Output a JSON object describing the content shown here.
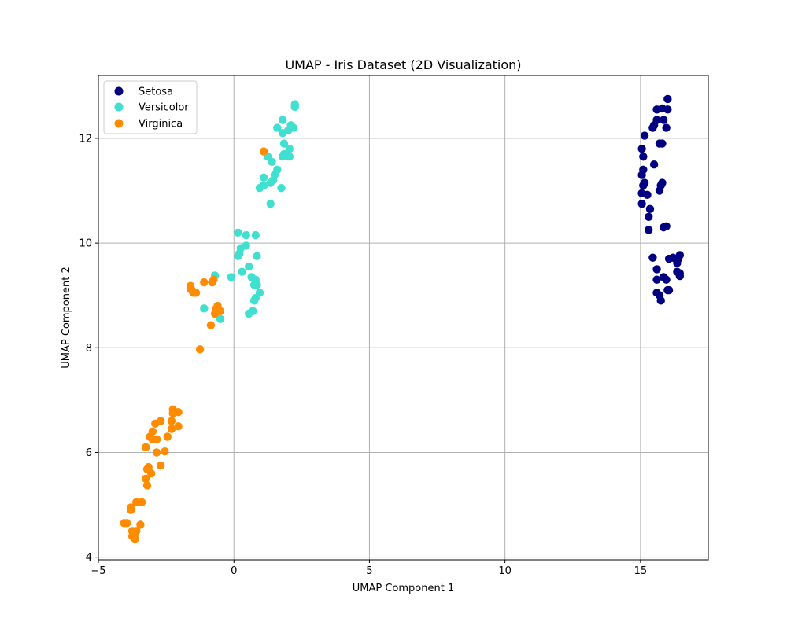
{
  "chart_data": {
    "type": "scatter",
    "title": "UMAP - Iris Dataset (2D Visualization)",
    "xlabel": "UMAP Component 1",
    "ylabel": "UMAP Component 2",
    "xlim": [
      -5,
      17.5
    ],
    "ylim": [
      3.95,
      13.2
    ],
    "xticks": [
      -5,
      0,
      5,
      10,
      15
    ],
    "yticks": [
      4,
      6,
      8,
      10,
      12
    ],
    "grid": true,
    "legend_position": "top-left",
    "series": [
      {
        "name": "Setosa",
        "color": "#000080",
        "points": [
          [
            16.0,
            12.75
          ],
          [
            15.6,
            12.55
          ],
          [
            15.8,
            12.57
          ],
          [
            16.0,
            12.55
          ],
          [
            15.6,
            12.35
          ],
          [
            15.85,
            12.35
          ],
          [
            15.5,
            12.25
          ],
          [
            15.45,
            12.2
          ],
          [
            15.95,
            12.2
          ],
          [
            15.15,
            12.05
          ],
          [
            15.7,
            11.9
          ],
          [
            15.8,
            11.9
          ],
          [
            15.05,
            11.8
          ],
          [
            15.1,
            11.65
          ],
          [
            15.5,
            11.5
          ],
          [
            15.1,
            11.4
          ],
          [
            15.05,
            11.3
          ],
          [
            15.15,
            11.15
          ],
          [
            15.1,
            11.1
          ],
          [
            15.8,
            11.15
          ],
          [
            15.75,
            11.1
          ],
          [
            15.7,
            11.0
          ],
          [
            15.05,
            10.95
          ],
          [
            15.25,
            10.92
          ],
          [
            15.05,
            10.75
          ],
          [
            15.35,
            10.65
          ],
          [
            15.3,
            10.5
          ],
          [
            15.85,
            10.3
          ],
          [
            15.95,
            10.32
          ],
          [
            15.3,
            10.25
          ],
          [
            16.45,
            9.77
          ],
          [
            16.2,
            9.72
          ],
          [
            16.05,
            9.7
          ],
          [
            16.4,
            9.7
          ],
          [
            15.45,
            9.72
          ],
          [
            16.35,
            9.62
          ],
          [
            15.6,
            9.5
          ],
          [
            16.35,
            9.45
          ],
          [
            16.45,
            9.42
          ],
          [
            16.45,
            9.37
          ],
          [
            15.85,
            9.35
          ],
          [
            15.95,
            9.3
          ],
          [
            15.6,
            9.3
          ],
          [
            16.0,
            9.1
          ],
          [
            16.05,
            9.1
          ],
          [
            15.6,
            9.05
          ],
          [
            15.7,
            9.0
          ],
          [
            15.75,
            8.9
          ]
        ]
      },
      {
        "name": "Versicolor",
        "color": "#40E0D0",
        "points": [
          [
            2.25,
            12.65
          ],
          [
            2.25,
            12.6
          ],
          [
            1.8,
            12.35
          ],
          [
            2.1,
            12.25
          ],
          [
            1.6,
            12.2
          ],
          [
            2.2,
            12.2
          ],
          [
            2.0,
            12.15
          ],
          [
            1.8,
            12.1
          ],
          [
            1.85,
            11.9
          ],
          [
            2.05,
            11.8
          ],
          [
            1.95,
            11.7
          ],
          [
            1.85,
            11.7
          ],
          [
            1.25,
            11.65
          ],
          [
            1.8,
            11.65
          ],
          [
            2.05,
            11.65
          ],
          [
            1.4,
            11.55
          ],
          [
            1.6,
            11.4
          ],
          [
            1.5,
            11.3
          ],
          [
            1.1,
            11.25
          ],
          [
            1.45,
            11.2
          ],
          [
            1.35,
            11.15
          ],
          [
            1.1,
            11.1
          ],
          [
            0.95,
            11.05
          ],
          [
            1.75,
            11.05
          ],
          [
            1.35,
            10.75
          ],
          [
            0.15,
            10.2
          ],
          [
            0.45,
            10.15
          ],
          [
            0.8,
            10.15
          ],
          [
            0.45,
            9.95
          ],
          [
            0.25,
            9.9
          ],
          [
            0.2,
            9.8
          ],
          [
            0.15,
            9.75
          ],
          [
            0.85,
            9.75
          ],
          [
            0.55,
            9.55
          ],
          [
            0.3,
            9.45
          ],
          [
            -0.1,
            9.35
          ],
          [
            -0.7,
            9.38
          ],
          [
            0.65,
            9.35
          ],
          [
            0.8,
            9.3
          ],
          [
            0.75,
            9.2
          ],
          [
            0.85,
            9.2
          ],
          [
            0.95,
            9.05
          ],
          [
            0.8,
            8.95
          ],
          [
            0.75,
            8.9
          ],
          [
            -1.1,
            8.75
          ],
          [
            0.7,
            8.7
          ],
          [
            0.55,
            8.65
          ],
          [
            -0.5,
            8.55
          ]
        ]
      },
      {
        "name": "Virginica",
        "color": "#FF8C00",
        "points": [
          [
            1.1,
            11.75
          ],
          [
            -1.6,
            9.18
          ],
          [
            -1.1,
            9.25
          ],
          [
            -0.75,
            9.3
          ],
          [
            -0.8,
            9.25
          ],
          [
            -1.6,
            9.12
          ],
          [
            -1.55,
            9.1
          ],
          [
            -1.5,
            9.05
          ],
          [
            -1.4,
            9.05
          ],
          [
            -0.6,
            8.8
          ],
          [
            -0.65,
            8.75
          ],
          [
            -0.5,
            8.7
          ],
          [
            -0.7,
            8.65
          ],
          [
            -0.85,
            8.43
          ],
          [
            -1.25,
            7.97
          ],
          [
            -2.25,
            6.82
          ],
          [
            -2.05,
            6.77
          ],
          [
            -2.25,
            6.75
          ],
          [
            -2.7,
            6.6
          ],
          [
            -2.3,
            6.6
          ],
          [
            -2.9,
            6.55
          ],
          [
            -2.05,
            6.5
          ],
          [
            -2.3,
            6.45
          ],
          [
            -3.0,
            6.4
          ],
          [
            -2.45,
            6.3
          ],
          [
            -3.1,
            6.3
          ],
          [
            -2.85,
            6.25
          ],
          [
            -3.0,
            6.25
          ],
          [
            -3.25,
            6.1
          ],
          [
            -2.55,
            6.02
          ],
          [
            -2.85,
            6.0
          ],
          [
            -2.7,
            5.75
          ],
          [
            -3.15,
            5.72
          ],
          [
            -3.2,
            5.68
          ],
          [
            -3.05,
            5.6
          ],
          [
            -3.25,
            5.5
          ],
          [
            -3.2,
            5.37
          ],
          [
            -3.6,
            5.05
          ],
          [
            -3.4,
            5.05
          ],
          [
            -3.8,
            4.95
          ],
          [
            -3.8,
            4.9
          ],
          [
            -3.95,
            4.65
          ],
          [
            -4.05,
            4.65
          ],
          [
            -3.45,
            4.62
          ],
          [
            -3.75,
            4.5
          ],
          [
            -3.6,
            4.5
          ],
          [
            -3.65,
            4.45
          ],
          [
            -3.75,
            4.4
          ],
          [
            -3.65,
            4.35
          ]
        ]
      }
    ]
  }
}
